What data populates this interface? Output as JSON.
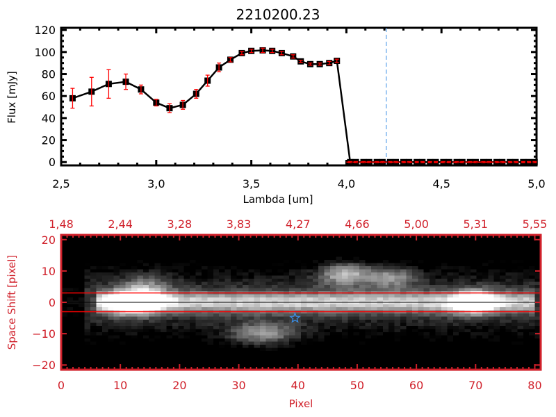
{
  "chart_data": [
    {
      "type": "line",
      "title": "2210200.23",
      "xlabel": "Lambda [um]",
      "ylabel": "Flux [mJy]",
      "xlim": [
        2.5,
        5.0
      ],
      "ylim": [
        -3,
        122
      ],
      "xticks": [
        "2.5",
        "3.0",
        "3.5",
        "4.0",
        "4.5",
        "5.0"
      ],
      "yticks": [
        "0",
        "20",
        "40",
        "60",
        "80",
        "100",
        "120"
      ],
      "x": [
        2.56,
        2.66,
        2.75,
        2.84,
        2.92,
        3.0,
        3.07,
        3.14,
        3.21,
        3.27,
        3.33,
        3.39,
        3.45,
        3.5,
        3.56,
        3.61,
        3.66,
        3.72,
        3.76,
        3.81,
        3.86,
        3.91,
        3.95,
        4.02,
        4.05,
        4.09,
        4.12,
        4.16,
        4.19,
        4.23,
        4.26,
        4.3,
        4.33,
        4.37,
        4.4,
        4.44,
        4.47,
        4.51,
        4.54,
        4.58,
        4.61,
        4.65,
        4.68,
        4.72,
        4.75,
        4.79,
        4.82,
        4.86,
        4.89,
        4.93,
        4.96,
        4.99
      ],
      "y": [
        58,
        64,
        71,
        73,
        66,
        54,
        49,
        52,
        62,
        74,
        86,
        93,
        99,
        101,
        101.5,
        101,
        99,
        96,
        91.5,
        89,
        89,
        90,
        92,
        0,
        0,
        0,
        0,
        0,
        0,
        0,
        0,
        0,
        0,
        0,
        0,
        0,
        0,
        0,
        0,
        0,
        0,
        0,
        0,
        0,
        0,
        0,
        0,
        0,
        0,
        0,
        0,
        0
      ],
      "yerr": [
        9,
        13,
        13,
        7,
        4,
        3,
        4,
        4,
        4,
        5,
        4,
        2,
        1.5,
        1.5,
        2,
        1.5,
        1.5,
        1.5,
        1,
        1,
        1,
        1.5,
        1.5,
        0.5,
        0.5,
        0.5,
        0.5,
        0.5,
        0.5,
        0.5,
        0.5,
        0.5,
        0.5,
        0.5,
        0.5,
        0.5,
        0.5,
        0.5,
        0.5,
        0.5,
        0.5,
        0.5,
        0.5,
        0.5,
        0.5,
        0.5,
        0.5,
        0.5,
        0.5,
        0.5,
        0.5,
        0.5
      ],
      "vline_x": 4.21,
      "zero_line": true,
      "colors": {
        "line": "#000000",
        "marker": "#000000",
        "errorbar": "#ff0000",
        "zero_line": "#ff0000",
        "vline": "#3a8ee6"
      }
    },
    {
      "type": "heatmap",
      "xlabel": "Pixel",
      "ylabel": "Space Shift [pixel]",
      "xlim": [
        0,
        81
      ],
      "ylim": [
        -21.5,
        21.5
      ],
      "xticks": [
        "0",
        "10",
        "20",
        "30",
        "40",
        "50",
        "60",
        "70",
        "80"
      ],
      "yticks": [
        "-20",
        "-10",
        "0",
        "10",
        "20"
      ],
      "top_xticks": [
        "1.48",
        "2.44",
        "3.28",
        "3.83",
        "4.27",
        "4.66",
        "5.00",
        "5.31",
        "5.55"
      ],
      "colormap": "grayscale",
      "aperture_lines": [
        -3,
        3
      ],
      "center_line": 0,
      "star_marker": {
        "x": 39,
        "y": -5
      },
      "colors": {
        "axes": "#d0202a",
        "aperture": "#ff0000",
        "center": "#000000",
        "star": "#3a8ee6"
      }
    }
  ]
}
